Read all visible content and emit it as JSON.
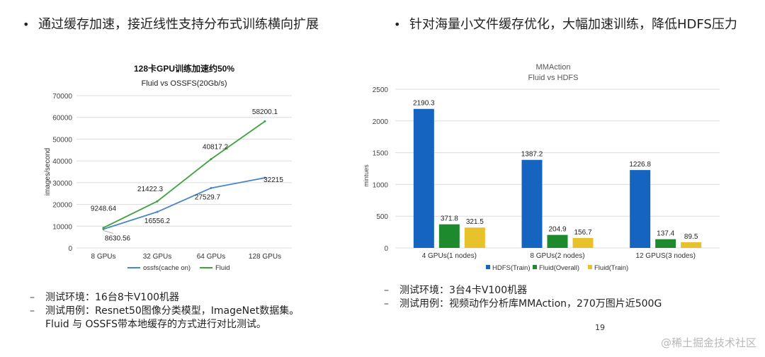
{
  "bullets": {
    "left": "通过缓存加速，接近线性支持分布式训练横向扩展",
    "right": "针对海量小文件缓存优化，大幅加速训练，降低HDFS压力",
    "marker": "•"
  },
  "chart_data": [
    {
      "type": "line",
      "title": "128卡GPU训练加速约50%",
      "subtitle": "Fluid vs OSSFS(20Gb/s)",
      "xlabel": "",
      "ylabel": "images/second",
      "categories": [
        "8 GPUs",
        "32 GPUs",
        "64 GPUs",
        "128 GPUs"
      ],
      "ylim": [
        0,
        70000
      ],
      "yticks": [
        "0",
        "10000",
        "20000",
        "30000",
        "40000",
        "50000",
        "60000",
        "70000"
      ],
      "grid": true,
      "legend_position": "bottom",
      "series": [
        {
          "name": "ossfs(cache on)",
          "color": "#4a86c8",
          "values": [
            8630.56,
            16556.2,
            27529.7,
            32215
          ],
          "labels": [
            "8630.56",
            "16556.2",
            "27529.7",
            "32215"
          ]
        },
        {
          "name": "Fluid",
          "color": "#3ea33e",
          "values": [
            9248.64,
            21422.3,
            40817.2,
            58200.1
          ],
          "labels": [
            "9248.64",
            "21422.3",
            "40817.2",
            "58200.1"
          ]
        }
      ]
    },
    {
      "type": "bar",
      "title": "MMAction",
      "subtitle": "Fluid vs HDFS",
      "xlabel": "",
      "ylabel": "mintues",
      "categories": [
        "4 GPUs(1 nodes)",
        "8 GPUs(2 nodes)",
        "12 GPUS(3 nodes)"
      ],
      "ylim": [
        0,
        2500
      ],
      "yticks": [
        "0",
        "500",
        "1000",
        "1500",
        "2000",
        "2500"
      ],
      "grid": true,
      "legend_position": "bottom",
      "series": [
        {
          "name": "HDFS(Train)",
          "color": "#1565c0",
          "values": [
            2190.3,
            1387.2,
            1226.8
          ],
          "labels": [
            "2190.3",
            "1387.2",
            "1226.8"
          ]
        },
        {
          "name": "Fluid(Overall)",
          "color": "#1e8a2e",
          "values": [
            371.8,
            204.9,
            137.4
          ],
          "labels": [
            "371.8",
            "204.9",
            "137.4"
          ]
        },
        {
          "name": "Fluid(Train)",
          "color": "#e8c22a",
          "values": [
            321.5,
            156.7,
            89.5
          ],
          "labels": [
            "321.5",
            "156.7",
            "89.5"
          ]
        }
      ]
    }
  ],
  "notes": {
    "left": [
      {
        "marker": "–",
        "text": "测试环境：16台8卡V100机器"
      },
      {
        "marker": "–",
        "text": "测试用例：Resnet50图像分类模型，ImageNet数据集。"
      },
      {
        "marker": "",
        "text": "Fluid 与 OSSFS带本地缓存的方式进行对比测试。"
      }
    ],
    "right": [
      {
        "marker": "–",
        "text": "测试环境：3台4卡V100机器"
      },
      {
        "marker": "–",
        "text": "测试用例：视频动作分析库MMAction，270万图片近500G"
      }
    ]
  },
  "page_number": "19",
  "watermark": "@稀土掘金技术社区"
}
